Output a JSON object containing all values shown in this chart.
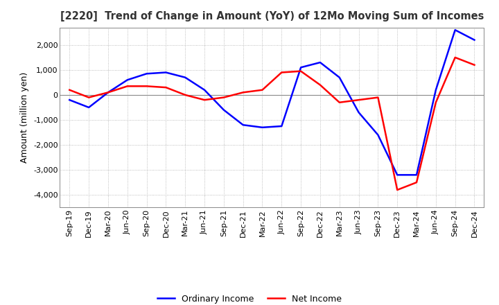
{
  "title": "[2220]  Trend of Change in Amount (YoY) of 12Mo Moving Sum of Incomes",
  "ylabel": "Amount (million yen)",
  "ylim": [
    -4500,
    2700
  ],
  "yticks": [
    -4000,
    -3000,
    -2000,
    -1000,
    0,
    1000,
    2000
  ],
  "background_color": "#ffffff",
  "grid_color": "#aaaaaa",
  "ordinary_income_color": "#0000ff",
  "net_income_color": "#ff0000",
  "legend_labels": [
    "Ordinary Income",
    "Net Income"
  ],
  "x_labels": [
    "Sep-19",
    "Dec-19",
    "Mar-20",
    "Jun-20",
    "Sep-20",
    "Dec-20",
    "Mar-21",
    "Jun-21",
    "Sep-21",
    "Dec-21",
    "Mar-22",
    "Jun-22",
    "Sep-22",
    "Dec-22",
    "Mar-23",
    "Jun-23",
    "Sep-23",
    "Dec-23",
    "Mar-24",
    "Jun-24",
    "Sep-24",
    "Dec-24"
  ],
  "ordinary_income": [
    -200,
    -500,
    100,
    600,
    850,
    900,
    700,
    200,
    -600,
    -1200,
    -1300,
    -1250,
    1100,
    1300,
    700,
    -700,
    -1600,
    -3200,
    -3200,
    200,
    2600,
    2200
  ],
  "net_income": [
    200,
    -100,
    100,
    350,
    350,
    300,
    0,
    -200,
    -100,
    100,
    200,
    900,
    950,
    400,
    -300,
    -200,
    -100,
    -3800,
    -3500,
    -300,
    1500,
    1200
  ]
}
